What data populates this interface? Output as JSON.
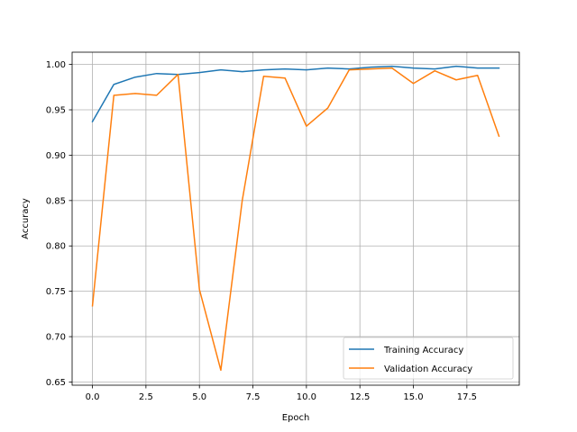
{
  "chart_data": {
    "type": "line",
    "title": "",
    "xlabel": "Epoch",
    "ylabel": "Accuracy",
    "xlim": [
      -0.95,
      19.95
    ],
    "ylim": [
      0.6465,
      1.0135
    ],
    "x": [
      0,
      1,
      2,
      3,
      4,
      5,
      6,
      7,
      8,
      9,
      10,
      11,
      12,
      13,
      14,
      15,
      16,
      17,
      18,
      19
    ],
    "x_ticks": [
      0.0,
      2.5,
      5.0,
      7.5,
      10.0,
      12.5,
      15.0,
      17.5
    ],
    "x_tick_labels": [
      "0.0",
      "2.5",
      "5.0",
      "7.5",
      "10.0",
      "12.5",
      "15.0",
      "17.5"
    ],
    "y_ticks": [
      0.65,
      0.7,
      0.75,
      0.8,
      0.85,
      0.9,
      0.95,
      1.0
    ],
    "y_tick_labels": [
      "0.65",
      "0.70",
      "0.75",
      "0.80",
      "0.85",
      "0.90",
      "0.95",
      "1.00"
    ],
    "grid": true,
    "legend_position": "lower-right",
    "series": [
      {
        "name": "Training Accuracy",
        "color": "#1f77b4",
        "values": [
          0.937,
          0.978,
          0.986,
          0.99,
          0.989,
          0.991,
          0.994,
          0.992,
          0.994,
          0.995,
          0.994,
          0.996,
          0.995,
          0.997,
          0.998,
          0.996,
          0.995,
          0.998,
          0.996,
          0.996
        ]
      },
      {
        "name": "Validation Accuracy",
        "color": "#ff7f0e",
        "values": [
          0.734,
          0.966,
          0.968,
          0.966,
          0.989,
          0.752,
          0.663,
          0.85,
          0.987,
          0.985,
          0.932,
          0.952,
          0.994,
          0.995,
          0.996,
          0.979,
          0.993,
          0.983,
          0.988,
          0.921
        ]
      }
    ]
  }
}
